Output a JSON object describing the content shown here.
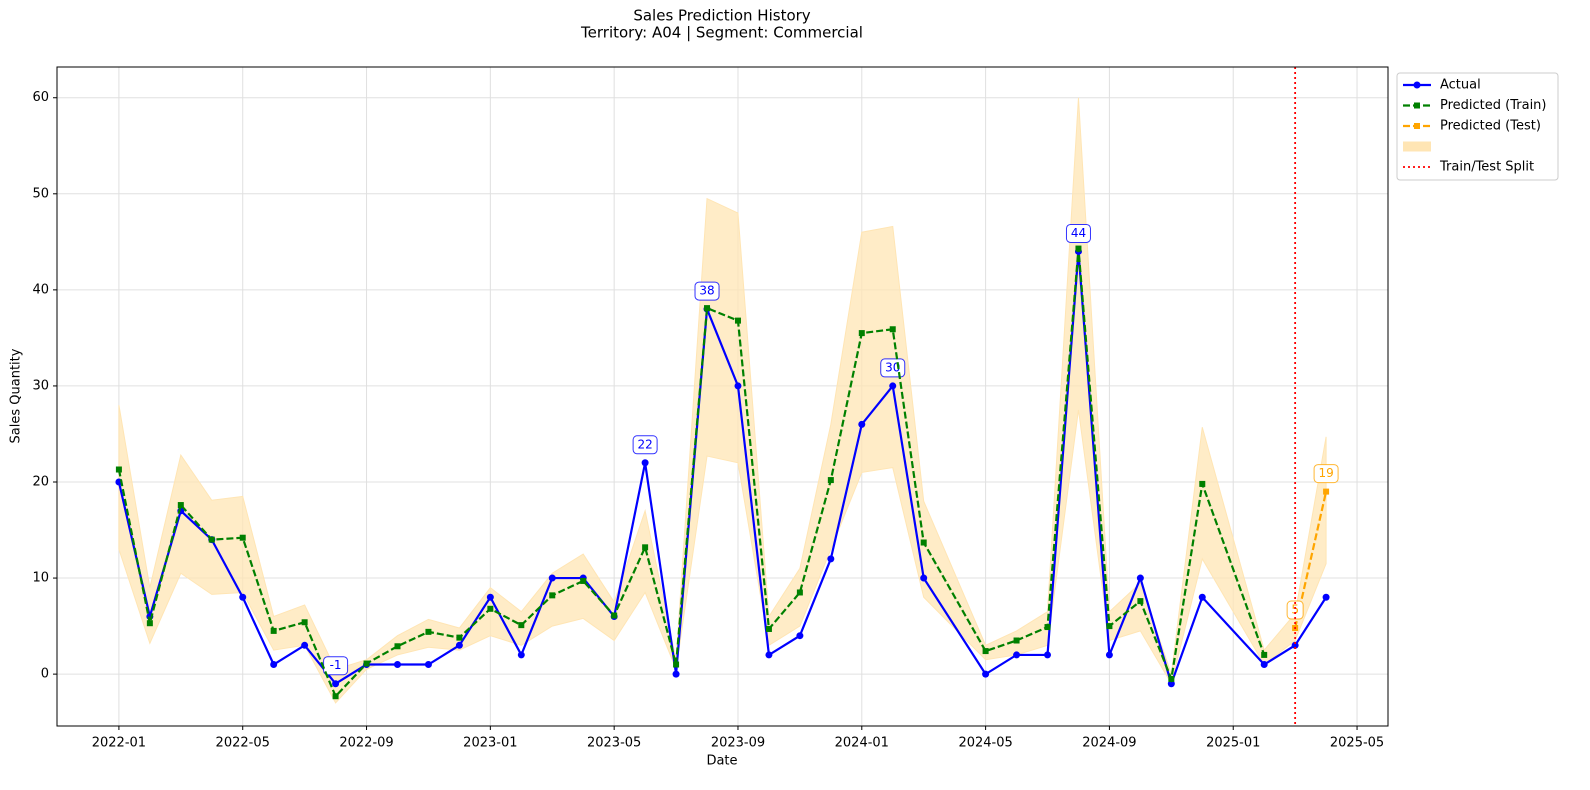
{
  "chart_data": {
    "type": "line",
    "title": "Sales Prediction History",
    "subtitle": "Territory: A04 | Segment: Commercial",
    "xlabel": "Date",
    "ylabel": "Sales Quantity",
    "x": [
      "2022-01",
      "2022-02",
      "2022-03",
      "2022-04",
      "2022-05",
      "2022-06",
      "2022-07",
      "2022-08",
      "2022-09",
      "2022-10",
      "2022-11",
      "2022-12",
      "2023-01",
      "2023-02",
      "2023-03",
      "2023-04",
      "2023-05",
      "2023-06",
      "2023-07",
      "2023-08",
      "2023-09",
      "2023-10",
      "2023-11",
      "2023-12",
      "2024-01",
      "2024-02",
      "2024-03",
      "2024-05",
      "2024-06",
      "2024-07",
      "2024-08",
      "2024-09",
      "2024-10",
      "2024-11",
      "2024-12",
      "2025-02",
      "2025-03",
      "2025-04"
    ],
    "series": [
      {
        "name": "Actual",
        "color": "#0000ff",
        "marker": "circle",
        "dashed": false,
        "values": [
          20,
          6,
          17,
          14,
          8,
          1,
          3,
          -1,
          1,
          1,
          1,
          3,
          8,
          2,
          10,
          10,
          6,
          22,
          0,
          38,
          30,
          2,
          4,
          12,
          26,
          30,
          10,
          0,
          2,
          2,
          44,
          2,
          10,
          -1,
          8,
          1,
          3,
          8
        ],
        "annotations": [
          {
            "x": "2022-08",
            "y": -1
          },
          {
            "x": "2023-06",
            "y": 22
          },
          {
            "x": "2023-08",
            "y": 38
          },
          {
            "x": "2024-02",
            "y": 30
          },
          {
            "x": "2024-08",
            "y": 44
          }
        ]
      },
      {
        "name": "Predicted (Train)",
        "color": "#008000",
        "marker": "square",
        "dashed": true,
        "values": [
          21.3,
          5.3,
          17.6,
          14,
          14.2,
          4.5,
          5.4,
          -2.3,
          1.1,
          2.9,
          4.4,
          3.8,
          6.8,
          5.1,
          8.2,
          9.7,
          6.1,
          13.2,
          1,
          38.1,
          36.8,
          4.7,
          8.5,
          20.2,
          35.5,
          35.9,
          13.7,
          2.4,
          3.5,
          4.9,
          44.3,
          5,
          7.6,
          -0.5,
          19.8,
          2,
          null,
          null
        ]
      },
      {
        "name": "Predicted (Test)",
        "color": "#ffa500",
        "marker": "square",
        "dashed": true,
        "values": [
          null,
          null,
          null,
          null,
          null,
          null,
          null,
          null,
          null,
          null,
          null,
          null,
          null,
          null,
          null,
          null,
          null,
          null,
          null,
          null,
          null,
          null,
          null,
          null,
          null,
          null,
          null,
          null,
          null,
          null,
          null,
          null,
          null,
          null,
          null,
          null,
          4.8,
          19
        ],
        "annotations": [
          {
            "x": "2025-03",
            "y": 4.8,
            "label": "5"
          },
          {
            "x": "2025-04",
            "y": 19
          }
        ]
      }
    ],
    "band": {
      "color": "#ffe5b4",
      "upper": [
        28,
        9,
        22.8,
        18.1,
        18.5,
        6,
        7.2,
        0.5,
        1.5,
        4,
        5.7,
        4.8,
        9,
        6.5,
        10.5,
        12.5,
        7.5,
        17,
        1.5,
        49.5,
        48,
        6,
        11,
        26,
        46,
        46.6,
        18,
        3,
        4.5,
        6.5,
        60,
        6.5,
        9.5,
        0,
        25.7,
        2.5,
        6.3,
        24.7
      ],
      "lower": [
        13,
        3.2,
        10.5,
        8.3,
        8.5,
        2.5,
        3,
        -3,
        0.5,
        2,
        2.8,
        2.5,
        4,
        3,
        5,
        5.8,
        3.5,
        8.5,
        0.5,
        22.7,
        22,
        3,
        5,
        13,
        21,
        21.5,
        8,
        1.5,
        2,
        3,
        27.5,
        3.5,
        4.5,
        -1,
        12,
        1,
        3.5,
        11.5
      ]
    },
    "split": {
      "x": "2025-03",
      "label": "Train/Test Split",
      "color": "#ff0000"
    },
    "xlim": [
      "2021-11",
      "2025-06"
    ],
    "xticks": [
      "2022-01",
      "2022-05",
      "2022-09",
      "2023-01",
      "2023-05",
      "2023-09",
      "2024-01",
      "2024-05",
      "2024-09",
      "2025-01",
      "2025-05"
    ],
    "ylim": [
      -5.4,
      63.2
    ],
    "yticks": [
      0,
      10,
      20,
      30,
      40,
      50,
      60
    ],
    "grid": true,
    "legend": "outside-upper-right"
  }
}
